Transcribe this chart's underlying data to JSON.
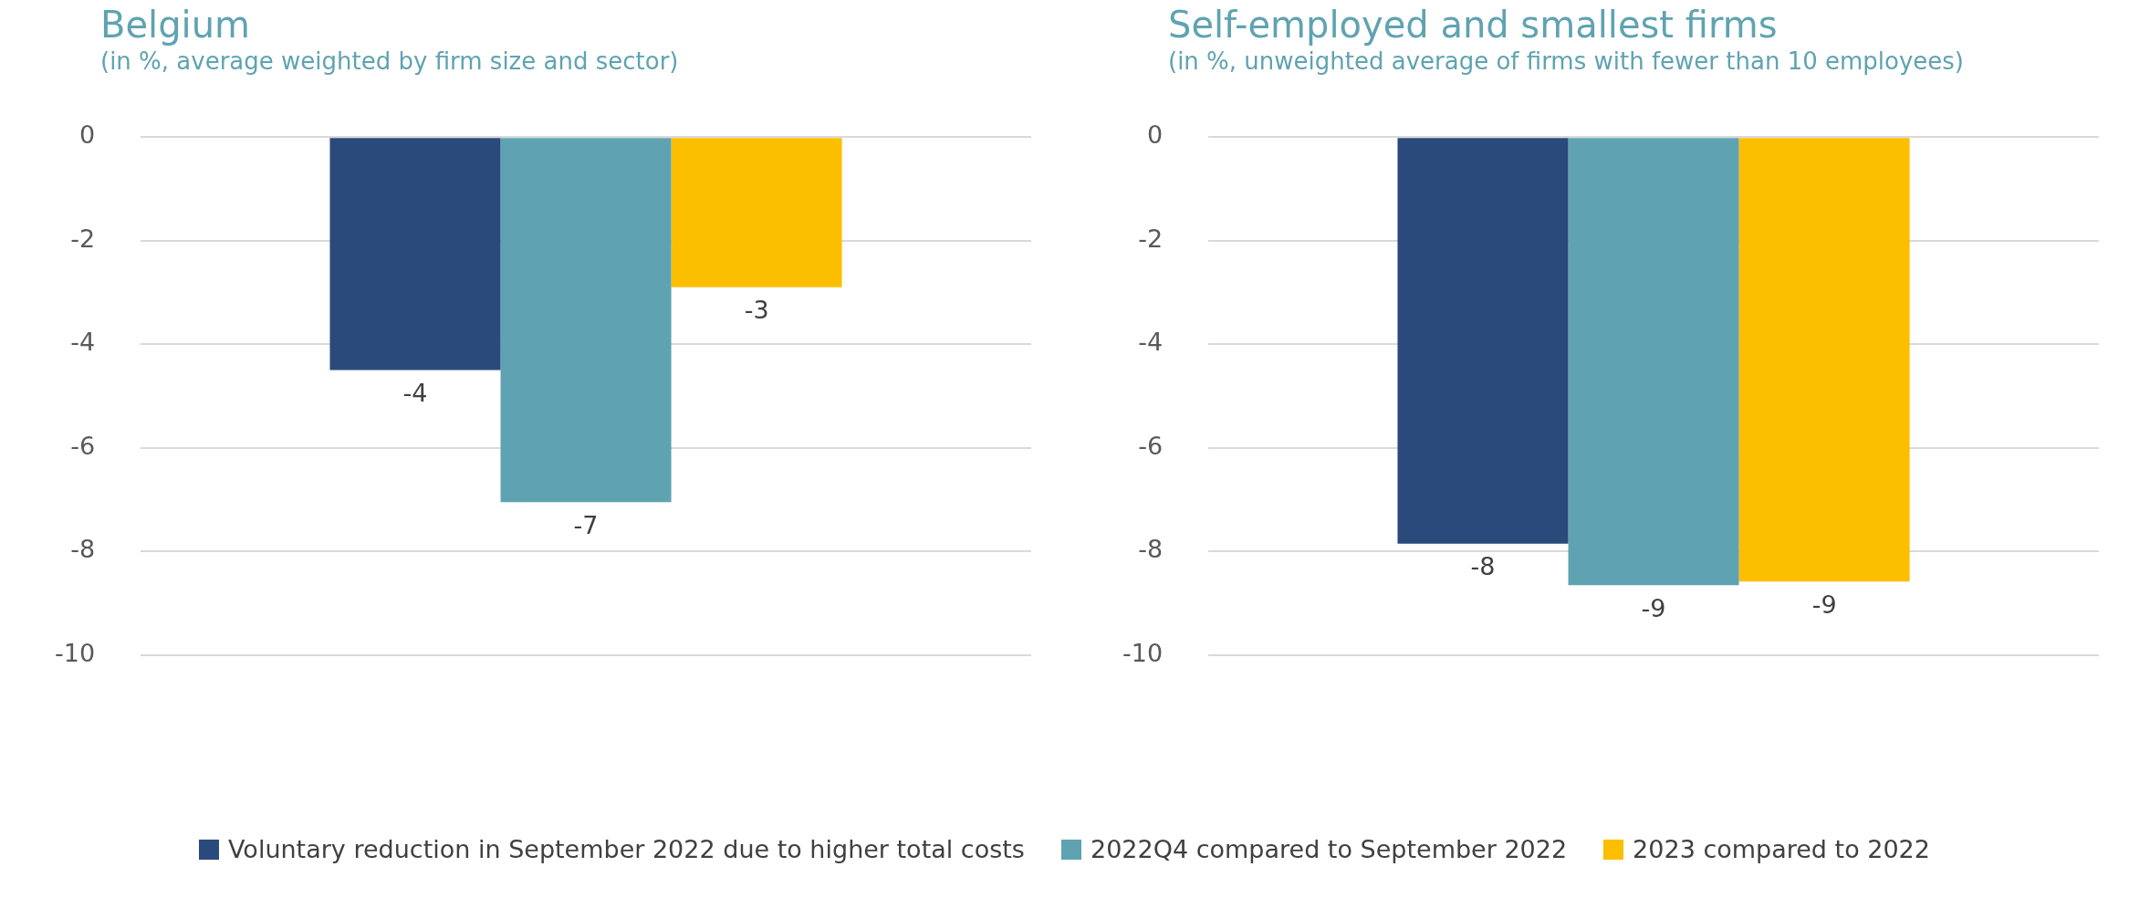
{
  "chart_data": [
    {
      "type": "bar",
      "title": "Belgium",
      "subtitle": "(in %, average weighted by firm size and sector)",
      "categories": [
        null
      ],
      "series": [
        {
          "name": "Voluntary reduction in September 2022 due to higher total costs",
          "color": "#2a4a7b",
          "values": [
            -4.5
          ],
          "value_labels": [
            "-4"
          ]
        },
        {
          "name": "2022Q4 compared to September 2022",
          "color": "#5fa3b2",
          "values": [
            -7.05
          ],
          "value_labels": [
            "-7"
          ]
        },
        {
          "name": "2023 compared to 2022",
          "color": "#fbbf00",
          "values": [
            -2.9
          ],
          "value_labels": [
            "-3"
          ]
        }
      ],
      "ylim": [
        -10,
        0
      ],
      "yticks": [
        -10,
        -8,
        -6,
        -4,
        -2,
        0
      ],
      "grid": "y",
      "legend": "bottom"
    },
    {
      "type": "bar",
      "title": "Self-employed and smallest firms",
      "subtitle": "(in %, unweighted average of firms with fewer than 10 employees)",
      "categories": [
        null
      ],
      "series": [
        {
          "color": "#2a4a7b",
          "values": [
            -7.85
          ],
          "value_labels": [
            "-8"
          ]
        },
        {
          "color": "#5fa3b2",
          "values": [
            -8.65
          ],
          "value_labels": [
            "-9"
          ]
        },
        {
          "color": "#fbbf00",
          "values": [
            -8.58
          ],
          "value_labels": [
            "-9"
          ]
        }
      ],
      "ylim": [
        -10,
        0
      ],
      "yticks": [
        -10,
        -8,
        -6,
        -4,
        -2,
        0
      ],
      "grid": "y"
    }
  ]
}
